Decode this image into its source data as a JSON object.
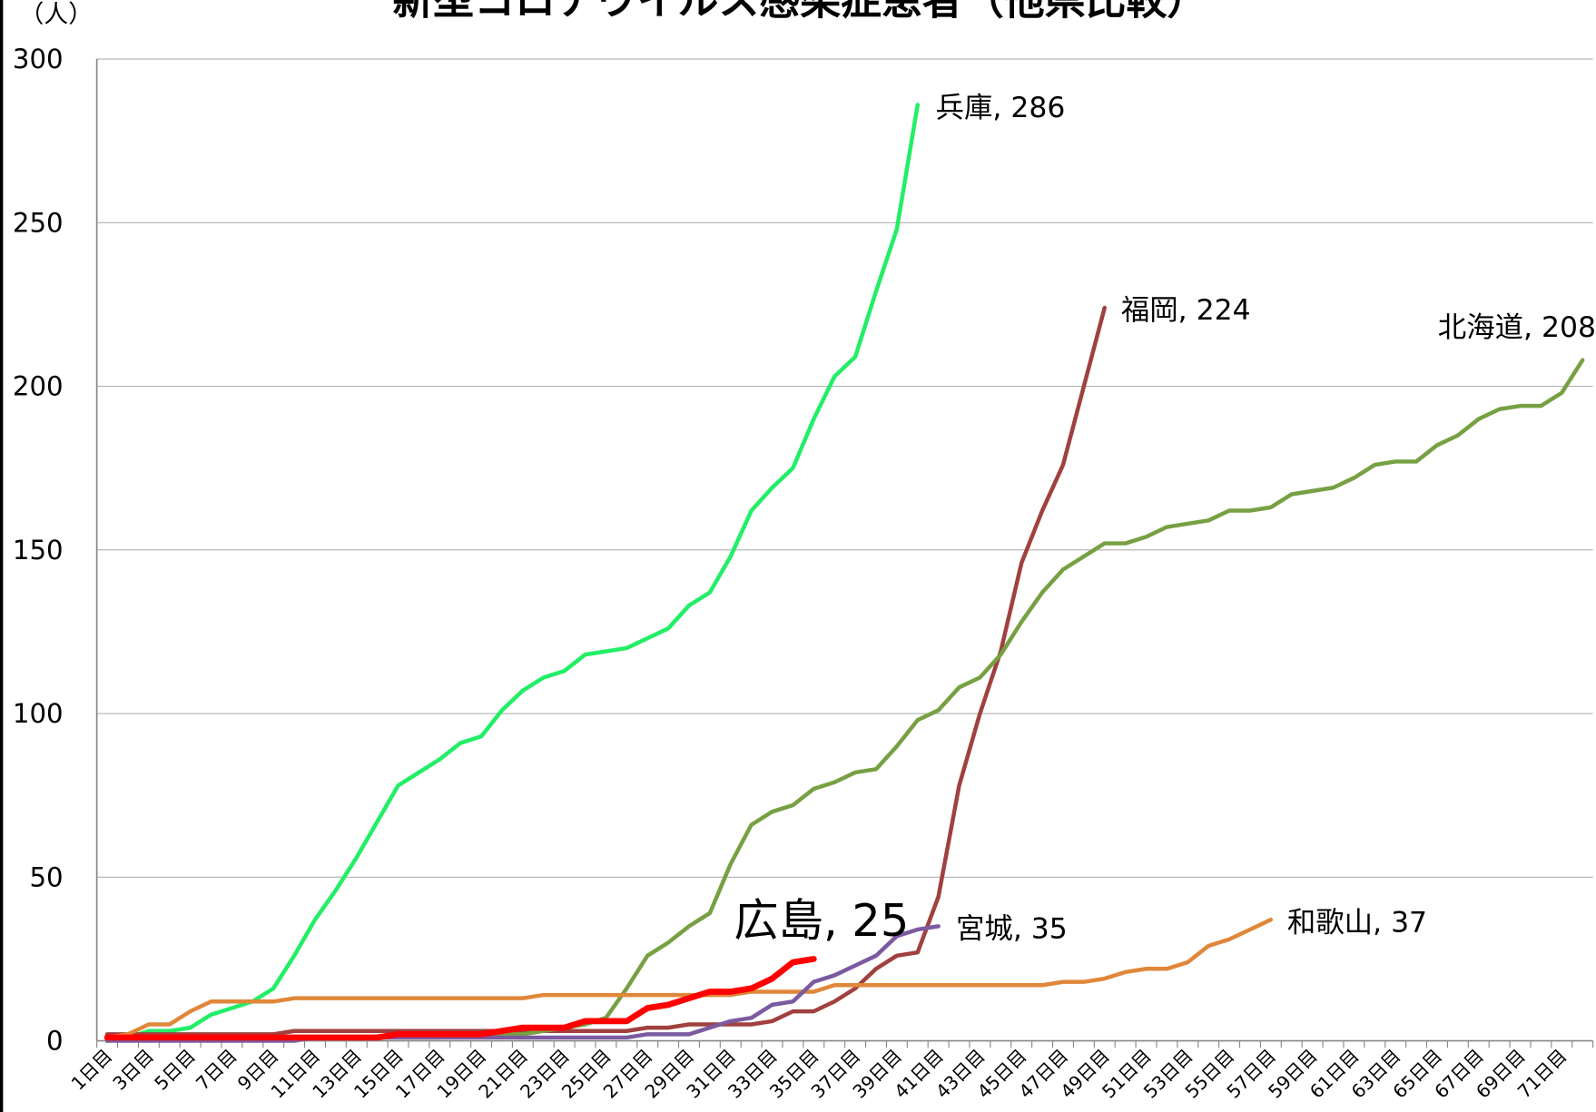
{
  "chart_data": {
    "type": "line",
    "title": "新型コロナウイルス感染症患者（他県比較）",
    "y_label": "（人）",
    "categories": [
      "1日目",
      null,
      "3日目",
      null,
      "5日目",
      null,
      "7日目",
      null,
      "9日目",
      null,
      "11日目",
      null,
      "13日目",
      null,
      "15日目",
      null,
      "17日目",
      null,
      "19日目",
      null,
      "21日目",
      null,
      "23日目",
      null,
      "25日目",
      null,
      "27日目",
      null,
      "29日目",
      null,
      "31日目",
      null,
      "33日目",
      null,
      "35日目",
      null,
      "37日目",
      null,
      "39日目",
      null,
      "41日目",
      null,
      "43日目",
      null,
      "45日目",
      null,
      "47日目",
      null,
      "49日目",
      null,
      "51日目",
      null,
      "53日目",
      null,
      "55日目",
      null,
      "57日目",
      null,
      "59日目",
      null,
      "61日目",
      null,
      "63日目",
      null,
      "65日目",
      null,
      "67日目",
      null,
      "69日目",
      null,
      "71日目",
      null
    ],
    "ylim": [
      0,
      300
    ],
    "yticks": [
      0,
      50,
      100,
      150,
      200,
      250,
      300
    ],
    "grid": true,
    "series": [
      {
        "label": "兵庫, 286",
        "color": "#22ee66",
        "linewidth": 4,
        "values": [
          0,
          1,
          3,
          3,
          4,
          8,
          10,
          12,
          16,
          26,
          37,
          46,
          56,
          67,
          78,
          82,
          86,
          91,
          93,
          101,
          107,
          111,
          113,
          118,
          119,
          120,
          123,
          126,
          133,
          137,
          148,
          162,
          169,
          175,
          190,
          203,
          209,
          229,
          248,
          286,
          null,
          null,
          null,
          null,
          null,
          null,
          null,
          null,
          null,
          null,
          null,
          null,
          null,
          null,
          null,
          null,
          null,
          null,
          null,
          null,
          null,
          null,
          null,
          null,
          null,
          null,
          null,
          null,
          null,
          null,
          null,
          null
        ]
      },
      {
        "label": "福岡, 224",
        "color": "#a0403f",
        "linewidth": 4,
        "values": [
          2,
          2,
          2,
          2,
          2,
          2,
          2,
          2,
          2,
          3,
          3,
          3,
          3,
          3,
          3,
          3,
          3,
          3,
          3,
          3,
          3,
          3,
          3,
          3,
          3,
          3,
          4,
          4,
          5,
          5,
          5,
          5,
          6,
          9,
          9,
          12,
          16,
          22,
          26,
          27,
          44,
          78,
          100,
          119,
          146,
          162,
          176,
          200,
          224,
          null,
          null,
          null,
          null,
          null,
          null,
          null,
          null,
          null,
          null,
          null,
          null,
          null,
          null,
          null,
          null,
          null,
          null,
          null,
          null,
          null,
          null,
          null
        ]
      },
      {
        "label": "北海道, 208",
        "color": "#77a043",
        "linewidth": 4,
        "values": [
          0,
          1,
          1,
          1,
          1,
          1,
          1,
          1,
          1,
          1,
          1,
          1,
          1,
          1,
          1,
          1,
          1,
          2,
          2,
          2,
          2,
          3,
          4,
          5,
          7,
          16,
          26,
          30,
          35,
          39,
          54,
          66,
          70,
          72,
          77,
          79,
          82,
          83,
          90,
          98,
          101,
          108,
          111,
          118,
          128,
          137,
          144,
          148,
          152,
          152,
          154,
          157,
          158,
          159,
          162,
          162,
          163,
          167,
          168,
          169,
          172,
          176,
          177,
          177,
          182,
          185,
          190,
          193,
          194,
          194,
          198,
          208
        ]
      },
      {
        "label": "和歌山, 37",
        "color": "#e0873a",
        "linewidth": 4,
        "values": [
          1,
          2,
          5,
          5,
          9,
          12,
          12,
          12,
          12,
          13,
          13,
          13,
          13,
          13,
          13,
          13,
          13,
          13,
          13,
          13,
          13,
          14,
          14,
          14,
          14,
          14,
          14,
          14,
          14,
          14,
          14,
          15,
          15,
          15,
          15,
          17,
          17,
          17,
          17,
          17,
          17,
          17,
          17,
          17,
          17,
          17,
          18,
          18,
          19,
          21,
          22,
          22,
          24,
          29,
          31,
          34,
          37,
          null,
          null,
          null,
          null,
          null,
          null,
          null,
          null,
          null,
          null,
          null,
          null,
          null,
          null,
          null
        ]
      },
      {
        "label": "宮城, 35",
        "color": "#7b5aa0",
        "linewidth": 4,
        "values": [
          0,
          0,
          0,
          0,
          0,
          0,
          0,
          0,
          0,
          0,
          1,
          1,
          1,
          1,
          1,
          1,
          1,
          1,
          1,
          1,
          1,
          1,
          1,
          1,
          1,
          1,
          2,
          2,
          2,
          4,
          6,
          7,
          11,
          12,
          18,
          20,
          23,
          26,
          32,
          34,
          35,
          null,
          null,
          null,
          null,
          null,
          null,
          null,
          null,
          null,
          null,
          null,
          null,
          null,
          null,
          null,
          null,
          null,
          null,
          null,
          null,
          null,
          null,
          null,
          null,
          null,
          null,
          null,
          null,
          null,
          null,
          null
        ]
      },
      {
        "label": "広島, 25",
        "color": "#ff0000",
        "linewidth": 6,
        "values": [
          1,
          1,
          1,
          1,
          1,
          1,
          1,
          1,
          1,
          1,
          1,
          1,
          1,
          1,
          2,
          2,
          2,
          2,
          2,
          3,
          4,
          4,
          4,
          6,
          6,
          6,
          10,
          11,
          13,
          15,
          15,
          16,
          19,
          24,
          25,
          null,
          null,
          null,
          null,
          null,
          null,
          null,
          null,
          null,
          null,
          null,
          null,
          null,
          null,
          null,
          null,
          null,
          null,
          null,
          null,
          null,
          null,
          null,
          null,
          null,
          null,
          null,
          null,
          null,
          null,
          null,
          null,
          null,
          null,
          null,
          null,
          null
        ]
      }
    ]
  }
}
